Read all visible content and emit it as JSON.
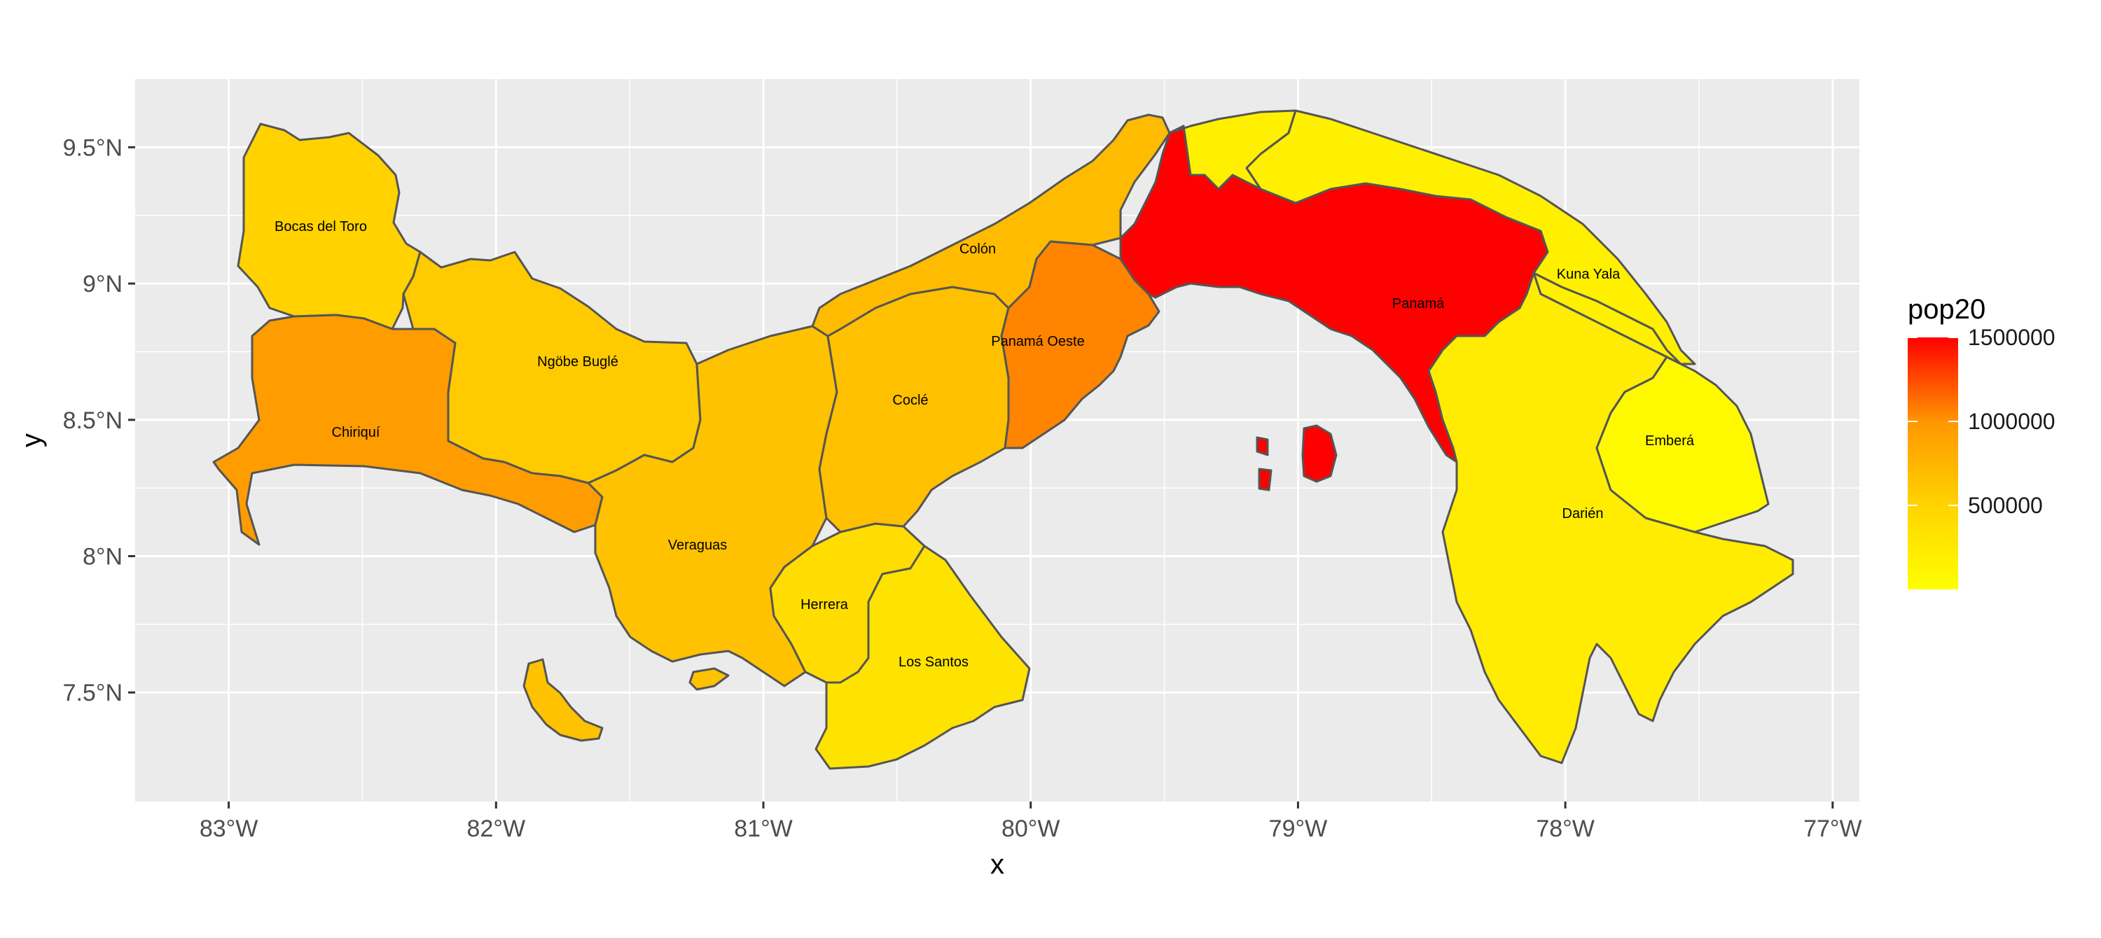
{
  "axes": {
    "x_title": "x",
    "y_title": "y",
    "x_ticks": [
      "83°W",
      "82°W",
      "81°W",
      "80°W",
      "79°W",
      "78°W",
      "77°W"
    ],
    "y_ticks": [
      "7.5°N",
      "8°N",
      "8.5°N",
      "9°N",
      "9.5°N"
    ]
  },
  "legend": {
    "title": "pop20",
    "labels": [
      "1500000",
      "1000000",
      "500000"
    ]
  },
  "colors": {
    "panel_background": "#ebebeb",
    "gridline": "#ffffff",
    "border": "#555555",
    "scale_low": "#ffff00",
    "scale_high": "#ff0000"
  },
  "chart_data": {
    "type": "choropleth",
    "fill_variable": "pop20",
    "xlim": [
      -83.35,
      -76.9
    ],
    "ylim": [
      7.1,
      9.75
    ],
    "x_tick_values": [
      -83,
      -82,
      -81,
      -80,
      -79,
      -78,
      -77
    ],
    "y_tick_values": [
      7.5,
      8,
      8.5,
      9,
      9.5
    ],
    "color_scale": {
      "low": "#ffff00",
      "high": "#ff0000",
      "min": 0,
      "max": 1500000,
      "breaks": [
        1500000,
        1000000,
        500000
      ]
    },
    "grid": true,
    "legend_position": "right",
    "regions": [
      {
        "name": "Bocas del Toro",
        "pop20": 170000
      },
      {
        "name": "Ngöbe Buglé",
        "pop20": 210000
      },
      {
        "name": "Chiriquí",
        "pop20": 460000
      },
      {
        "name": "Veraguas",
        "pop20": 250000
      },
      {
        "name": "Coclé",
        "pop20": 260000
      },
      {
        "name": "Colón",
        "pop20": 290000
      },
      {
        "name": "Panamá Oeste",
        "pop20": 600000
      },
      {
        "name": "Panamá",
        "pop20": 1500000
      },
      {
        "name": "Kuna Yala",
        "pop20": 45000
      },
      {
        "name": "Emberá",
        "pop20": 13000
      },
      {
        "name": "Darién",
        "pop20": 58000
      },
      {
        "name": "Herrera",
        "pop20": 120000
      },
      {
        "name": "Los Santos",
        "pop20": 95000
      }
    ]
  }
}
